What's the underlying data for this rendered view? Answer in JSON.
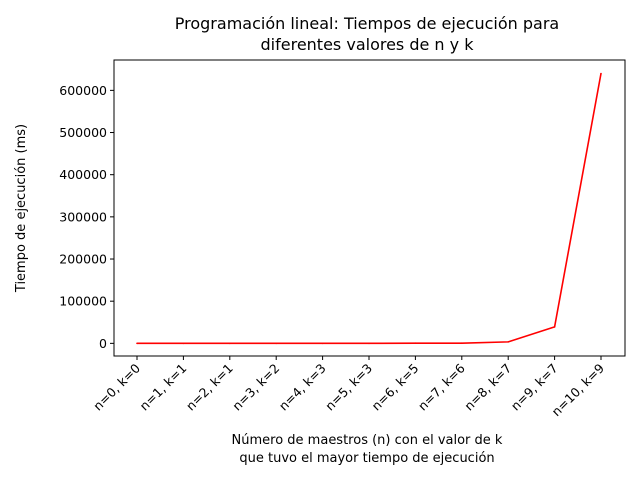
{
  "chart_data": {
    "type": "line",
    "title_lines": [
      "Programación lineal: Tiempos de ejecución para",
      "diferentes valores de n y k"
    ],
    "xlabel_lines": [
      "Número de maestros (n) con el valor de k",
      "que tuvo el mayor tiempo de ejecución"
    ],
    "ylabel": "Tiempo de ejecución (ms)",
    "categories": [
      "n=0, k=0",
      "n=1, k=1",
      "n=2, k=1",
      "n=3, k=2",
      "n=4, k=3",
      "n=5, k=3",
      "n=6, k=5",
      "n=7, k=6",
      "n=8, k=7",
      "n=9, k=7",
      "n=10, k=9"
    ],
    "series": [
      {
        "values": [
          0,
          0,
          0,
          0,
          0,
          0,
          300,
          500,
          3500,
          39000,
          640000
        ],
        "color": "#ff0000"
      }
    ],
    "ylim": [
      -30000,
      672000
    ],
    "yticks": [
      0,
      100000,
      200000,
      300000,
      400000,
      500000,
      600000
    ],
    "ytick_labels": [
      "0",
      "100000",
      "200000",
      "300000",
      "400000",
      "500000",
      "600000"
    ],
    "grid": false,
    "legend": false
  }
}
